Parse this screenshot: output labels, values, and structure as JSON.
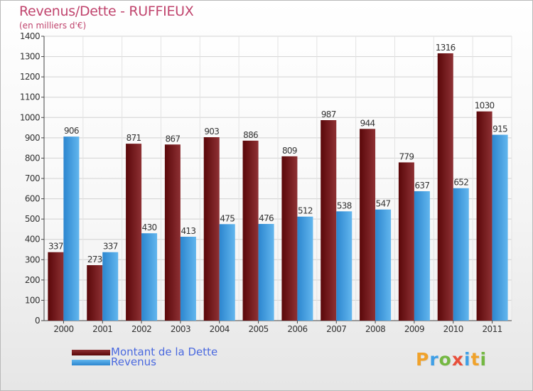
{
  "title": "Revenus/Dette - RUFFIEUX",
  "subtitle": "(en milliers d'€)",
  "colors": {
    "title": "#c0446d",
    "legend_text": "#4a69df",
    "dette_dark": "#5a0709",
    "dette_light": "#8e3134",
    "revenus_dark": "#2c86cf",
    "revenus_light": "#62b6ee"
  },
  "legend": {
    "position": "bottom-left",
    "items": [
      {
        "label": "Montant de la Dette",
        "color": "#6e0e10"
      },
      {
        "label": "Revenus",
        "color": "#3f9fe6"
      }
    ]
  },
  "logo": {
    "letters": [
      "P",
      "r",
      "o",
      "x",
      "i",
      "t",
      "i"
    ],
    "colors": [
      "#f0a22b",
      "#3f9fe6",
      "#74b842",
      "#e84f3b",
      "#3f9fe6",
      "#f0a22b",
      "#74b842"
    ]
  },
  "chart_data": {
    "type": "bar",
    "title": "Revenus/Dette - RUFFIEUX",
    "subtitle": "(en milliers d'€)",
    "xlabel": "",
    "ylabel": "",
    "categories": [
      "2000",
      "2001",
      "2002",
      "2003",
      "2004",
      "2005",
      "2006",
      "2007",
      "2008",
      "2009",
      "2010",
      "2011"
    ],
    "series": [
      {
        "name": "Montant de la Dette",
        "values": [
          337,
          273,
          871,
          867,
          903,
          886,
          809,
          987,
          944,
          779,
          1316,
          1030
        ]
      },
      {
        "name": "Revenus",
        "values": [
          906,
          337,
          430,
          413,
          475,
          476,
          512,
          538,
          547,
          637,
          652,
          915
        ]
      }
    ],
    "ylim": [
      0,
      1400
    ],
    "yticks": [
      0,
      100,
      200,
      300,
      400,
      500,
      600,
      700,
      800,
      900,
      1000,
      1100,
      1200,
      1300,
      1400
    ],
    "grid": true,
    "legend_position": "bottom-left"
  }
}
